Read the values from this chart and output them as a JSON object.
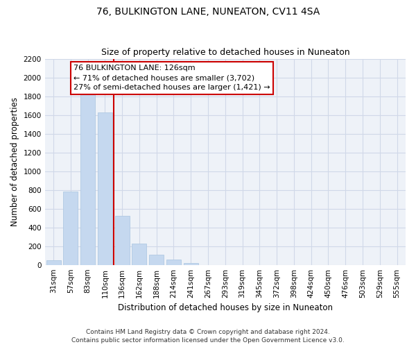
{
  "title": "76, BULKINGTON LANE, NUNEATON, CV11 4SA",
  "subtitle": "Size of property relative to detached houses in Nuneaton",
  "xlabel": "Distribution of detached houses by size in Nuneaton",
  "ylabel": "Number of detached properties",
  "bar_labels": [
    "31sqm",
    "57sqm",
    "83sqm",
    "110sqm",
    "136sqm",
    "162sqm",
    "188sqm",
    "214sqm",
    "241sqm",
    "267sqm",
    "293sqm",
    "319sqm",
    "345sqm",
    "372sqm",
    "398sqm",
    "424sqm",
    "450sqm",
    "476sqm",
    "503sqm",
    "529sqm",
    "555sqm"
  ],
  "bar_values": [
    50,
    780,
    1820,
    1630,
    520,
    230,
    105,
    55,
    20,
    0,
    0,
    0,
    0,
    0,
    0,
    0,
    0,
    0,
    0,
    0,
    0
  ],
  "bar_color": "#c5d8ef",
  "bar_edge_color": "#a8c4e0",
  "vline_x": 3.5,
  "vline_color": "#cc0000",
  "ylim": [
    0,
    2200
  ],
  "yticks": [
    0,
    200,
    400,
    600,
    800,
    1000,
    1200,
    1400,
    1600,
    1800,
    2000,
    2200
  ],
  "annotation_title": "76 BULKINGTON LANE: 126sqm",
  "annotation_line1": "← 71% of detached houses are smaller (3,702)",
  "annotation_line2": "27% of semi-detached houses are larger (1,421) →",
  "footer_line1": "Contains HM Land Registry data © Crown copyright and database right 2024.",
  "footer_line2": "Contains public sector information licensed under the Open Government Licence v3.0.",
  "title_fontsize": 10,
  "subtitle_fontsize": 9,
  "axis_label_fontsize": 8.5,
  "tick_fontsize": 7.5,
  "annotation_fontsize": 8,
  "footer_fontsize": 6.5,
  "grid_color": "#d0d8e8",
  "background_color": "#eef2f8"
}
